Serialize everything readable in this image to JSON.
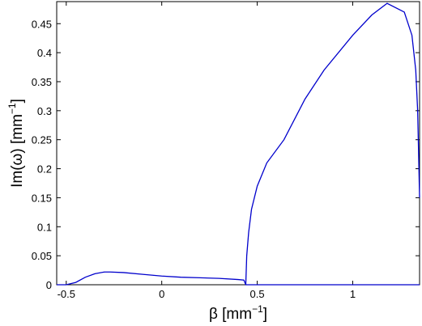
{
  "chart_data": {
    "type": "line",
    "x_label": {
      "text": "β [mm",
      "sup": "−1",
      "end": "]"
    },
    "y_label": {
      "text": "Im(ω) [mm",
      "sup": "−1",
      "end": "]"
    },
    "xlim": [
      -0.55,
      1.35
    ],
    "ylim": [
      0,
      0.488
    ],
    "xticks": [
      -0.5,
      0,
      0.5,
      1
    ],
    "yticks": [
      0,
      0.05,
      0.1,
      0.15,
      0.2,
      0.25,
      0.3,
      0.35,
      0.4,
      0.45
    ],
    "grid": false,
    "series": [
      {
        "color": "#0000cc",
        "x": [
          -0.55,
          -0.5,
          -0.45,
          -0.4,
          -0.35,
          -0.3,
          -0.27,
          -0.2,
          -0.1,
          0,
          0.1,
          0.2,
          0.3,
          0.4,
          0.43,
          0.44,
          0.5,
          0.8,
          1.1,
          1.35
        ],
        "values": [
          0,
          0,
          0.004,
          0.013,
          0.019,
          0.022,
          0.022,
          0.021,
          0.018,
          0.015,
          0.013,
          0.012,
          0.011,
          0.009,
          0.008,
          0,
          0,
          0,
          0,
          0
        ]
      },
      {
        "color": "#0000cc",
        "x": [
          0.44,
          0.445,
          0.455,
          0.47,
          0.5,
          0.55,
          0.64,
          0.75,
          0.85,
          1.0,
          1.1,
          1.18,
          1.27,
          1.31,
          1.33,
          1.34,
          1.35
        ],
        "values": [
          0,
          0.05,
          0.09,
          0.13,
          0.17,
          0.21,
          0.25,
          0.32,
          0.37,
          0.43,
          0.465,
          0.485,
          0.47,
          0.43,
          0.37,
          0.3,
          0.15
        ]
      }
    ]
  }
}
